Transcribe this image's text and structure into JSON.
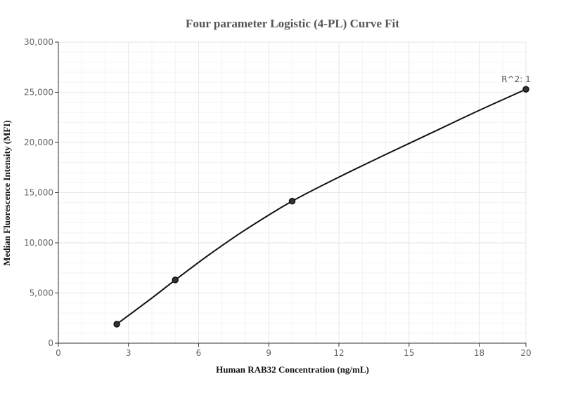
{
  "chart_data": {
    "type": "scatter",
    "title": "Four parameter Logistic (4-PL) Curve Fit",
    "xlabel": "Human RAB32 Concentration (ng/mL)",
    "ylabel": "Median Fluorescence Intensity (MFI)",
    "xlim": [
      0,
      20
    ],
    "ylim": [
      0,
      30000
    ],
    "x_ticks": [
      0,
      3,
      6,
      9,
      12,
      15,
      18,
      20
    ],
    "x_tick_labels": [
      "0",
      "3",
      "6",
      "9",
      "12",
      "15",
      "18",
      "20"
    ],
    "y_ticks": [
      0,
      5000,
      10000,
      15000,
      20000,
      25000,
      30000
    ],
    "y_tick_labels": [
      "0",
      "5,000",
      "10,000",
      "15,000",
      "20,000",
      "25,000",
      "30,000"
    ],
    "grid": true,
    "series": [
      {
        "points": [
          {
            "x": 2.5,
            "y": 1900
          },
          {
            "x": 5,
            "y": 6300
          },
          {
            "x": 10,
            "y": 14150
          },
          {
            "x": 20,
            "y": 25300
          }
        ],
        "fit_curve": [
          {
            "x": 2.5,
            "y": 1900
          },
          {
            "x": 4,
            "y": 4500
          },
          {
            "x": 5,
            "y": 6300
          },
          {
            "x": 6.5,
            "y": 8900
          },
          {
            "x": 8,
            "y": 11300
          },
          {
            "x": 10,
            "y": 14150
          },
          {
            "x": 12,
            "y": 16550
          },
          {
            "x": 14,
            "y": 18800
          },
          {
            "x": 16,
            "y": 21000
          },
          {
            "x": 18,
            "y": 23200
          },
          {
            "x": 20,
            "y": 25300
          }
        ]
      }
    ],
    "annotations": [
      {
        "text": "R^2: 1",
        "x": 20,
        "y": 25300
      }
    ],
    "colors": {
      "curve": "#111111",
      "points": "#333333",
      "grid": "#e6e6e6",
      "axis": "#333333"
    }
  }
}
